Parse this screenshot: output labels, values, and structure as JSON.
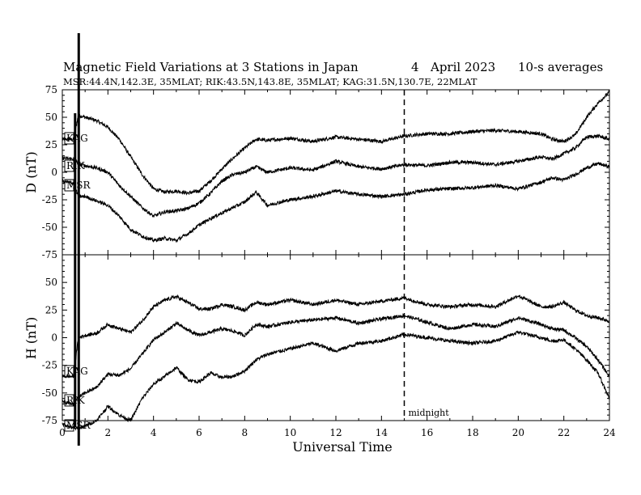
{
  "header": {
    "title": "Magnetic Field Variations at 3 Stations in Japan",
    "day": "4",
    "month": "April",
    "year": "2023",
    "averaging": "10-s averages",
    "stations_line": "MSR:44.4N,142.3E, 35MLAT;  RIK:43.5N,143.8E, 35MLAT;  KAG:31.5N,130.7E, 22MLAT"
  },
  "chart_data": [
    {
      "type": "line",
      "panel": "D",
      "ylabel": "D (nT)",
      "xlabel": "",
      "xlim": [
        0,
        24
      ],
      "ylim": [
        -75,
        75
      ],
      "yticks": [
        "75",
        "50",
        "25",
        "0",
        "-25",
        "-50",
        "-75"
      ],
      "series": [
        {
          "name": "KAG",
          "x": [
            0,
            0.5,
            0.7,
            1,
            1.5,
            2,
            2.5,
            3,
            3.5,
            4,
            4.5,
            5,
            5.5,
            6,
            6.5,
            7,
            7.5,
            8,
            8.5,
            9,
            10,
            11,
            12,
            13,
            14,
            15,
            16,
            17,
            18,
            19,
            20,
            21,
            21.5,
            22,
            22.5,
            23,
            23.5,
            24
          ],
          "y": [
            30,
            30,
            52,
            50,
            47,
            41,
            30,
            14,
            -2,
            -15,
            -18,
            -17,
            -19,
            -17,
            -8,
            3,
            13,
            22,
            30,
            29,
            31,
            28,
            32,
            30,
            28,
            33,
            35,
            35,
            37,
            38,
            37,
            35,
            30,
            28,
            34,
            50,
            63,
            73
          ]
        },
        {
          "name": "RIK",
          "x": [
            0,
            0.5,
            0.7,
            1,
            1.5,
            2,
            2.5,
            3,
            3.5,
            4,
            4.5,
            5,
            5.5,
            6,
            6.5,
            7,
            7.5,
            8,
            8.5,
            9,
            10,
            11,
            12,
            13,
            14,
            15,
            16,
            17,
            18,
            19,
            20,
            21,
            21.5,
            22,
            22.5,
            23,
            23.5,
            24
          ],
          "y": [
            13,
            12,
            8,
            6,
            4,
            0,
            -12,
            -22,
            -32,
            -40,
            -36,
            -35,
            -33,
            -28,
            -19,
            -8,
            -2,
            0,
            5,
            0,
            4,
            2,
            10,
            5,
            3,
            7,
            6,
            9,
            9,
            7,
            10,
            14,
            12,
            17,
            22,
            32,
            33,
            30
          ]
        },
        {
          "name": "MSR",
          "x": [
            0,
            0.5,
            0.7,
            1,
            1.5,
            2,
            2.5,
            3,
            3.5,
            4,
            4.5,
            5,
            5.5,
            6,
            6.5,
            7,
            7.5,
            8,
            8.5,
            9,
            10,
            11,
            12,
            13,
            14,
            15,
            16,
            17,
            18,
            19,
            20,
            21,
            21.5,
            22,
            22.5,
            23,
            23.5,
            24
          ],
          "y": [
            -8,
            -10,
            -22,
            -22,
            -26,
            -30,
            -40,
            -52,
            -58,
            -62,
            -60,
            -62,
            -56,
            -48,
            -42,
            -37,
            -32,
            -27,
            -18,
            -30,
            -25,
            -22,
            -17,
            -20,
            -22,
            -20,
            -16,
            -15,
            -14,
            -12,
            -15,
            -9,
            -5,
            -7,
            -2,
            4,
            8,
            5
          ]
        }
      ]
    },
    {
      "type": "line",
      "panel": "H",
      "ylabel": "H (nT)",
      "xlabel": "Universal Time",
      "xlim": [
        0,
        24
      ],
      "ylim": [
        -75,
        75
      ],
      "yticks": [
        "",
        "50",
        "25",
        "0",
        "-25",
        "-50",
        "-75"
      ],
      "xticks": [
        "0",
        "2",
        "4",
        "6",
        "8",
        "10",
        "12",
        "14",
        "16",
        "18",
        "20",
        "22",
        "24"
      ],
      "annotations": [
        {
          "x": 15,
          "label": "midnight"
        }
      ],
      "series": [
        {
          "name": "KAG",
          "x": [
            0,
            0.5,
            0.7,
            1,
            1.5,
            2,
            2.5,
            3,
            3.5,
            4,
            4.5,
            5,
            5.5,
            6,
            6.5,
            7,
            7.5,
            8,
            8.5,
            9,
            10,
            11,
            12,
            13,
            14,
            15,
            16,
            17,
            18,
            19,
            20,
            21,
            21.5,
            22,
            22.5,
            23,
            23.5,
            24
          ],
          "y": [
            -35,
            -35,
            0,
            2,
            4,
            12,
            8,
            5,
            15,
            28,
            34,
            37,
            32,
            26,
            26,
            30,
            28,
            25,
            32,
            30,
            34,
            30,
            34,
            30,
            33,
            36,
            30,
            28,
            30,
            28,
            38,
            28,
            28,
            32,
            25,
            20,
            18,
            15
          ]
        },
        {
          "name": "RIK",
          "x": [
            0,
            0.5,
            0.7,
            1,
            1.5,
            2,
            2.5,
            3,
            3.5,
            4,
            4.5,
            5,
            5.5,
            6,
            6.5,
            7,
            7.5,
            8,
            8.5,
            9,
            10,
            11,
            12,
            13,
            14,
            15,
            16,
            17,
            18,
            19,
            20,
            21,
            21.5,
            22,
            22.5,
            23,
            23.5,
            24
          ],
          "y": [
            -58,
            -60,
            -54,
            -50,
            -45,
            -33,
            -34,
            -28,
            -15,
            -2,
            5,
            13,
            7,
            2,
            5,
            8,
            6,
            2,
            12,
            10,
            14,
            16,
            18,
            13,
            17,
            20,
            14,
            8,
            12,
            10,
            18,
            12,
            8,
            7,
            0,
            -8,
            -20,
            -35
          ]
        },
        {
          "name": "MSR",
          "x": [
            0,
            0.5,
            0.7,
            1,
            1.5,
            2,
            2.5,
            3,
            3.5,
            4,
            4.5,
            5,
            5.5,
            6,
            6.5,
            7,
            7.5,
            8,
            8.5,
            9,
            10,
            11,
            12,
            13,
            14,
            15,
            16,
            17,
            18,
            19,
            20,
            21,
            21.5,
            22,
            22.5,
            23,
            23.5,
            24
          ],
          "y": [
            -78,
            -82,
            -82,
            -80,
            -75,
            -62,
            -70,
            -75,
            -55,
            -42,
            -35,
            -27,
            -38,
            -40,
            -32,
            -36,
            -35,
            -30,
            -20,
            -15,
            -10,
            -5,
            -12,
            -5,
            -3,
            3,
            0,
            -3,
            -5,
            -3,
            5,
            0,
            -3,
            -2,
            -10,
            -20,
            -32,
            -55
          ]
        }
      ]
    }
  ]
}
